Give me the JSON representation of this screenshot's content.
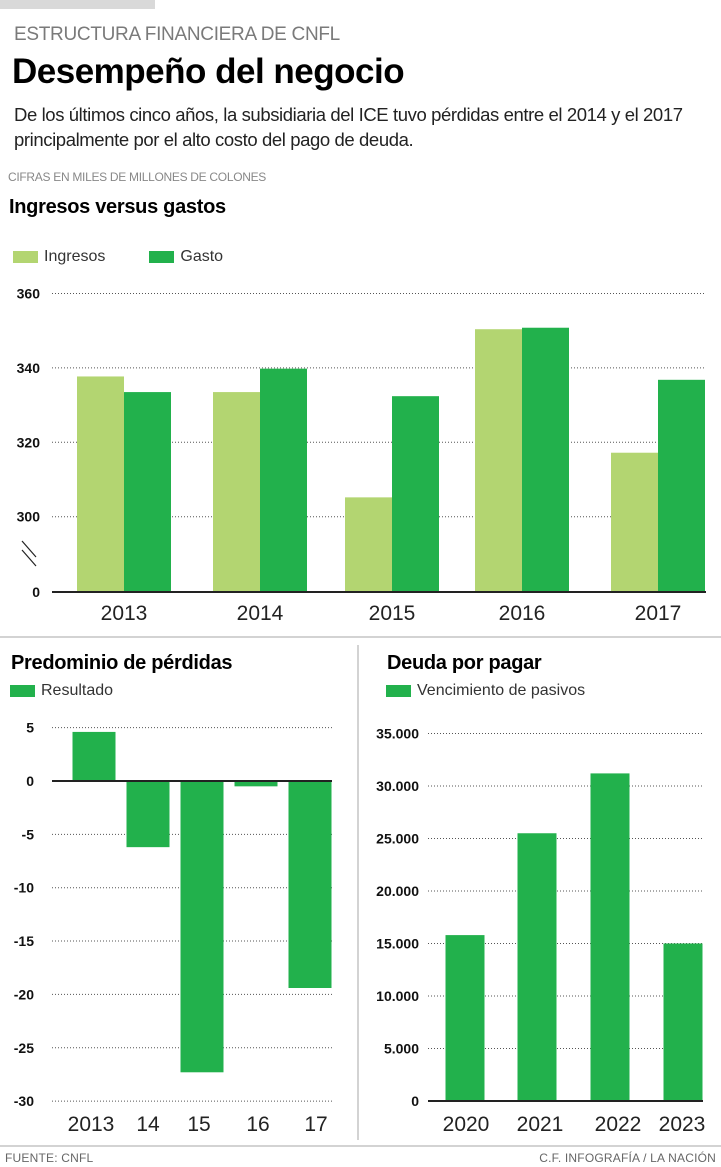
{
  "header": {
    "kicker": "ESTRUCTURA FINANCIERA DE CNFL",
    "title": "Desempeño del negocio",
    "dek": "De los últimos cinco años, la subsidiaria del ICE tuvo pérdidas entre el 2014 y el 2017 principalmente por el alto costo del pago de deuda.",
    "units": "CIFRAS EN MILES DE MILLONES DE COLONES"
  },
  "colors": {
    "ingresos": "#b3d571",
    "gasto": "#22b14c",
    "grid": "#555555",
    "axis": "#222222"
  },
  "chart_data": [
    {
      "id": "ingresos-gastos",
      "type": "bar",
      "title": "Ingresos versus gastos",
      "xlabel": "",
      "ylabel": "",
      "categories": [
        "2013",
        "2014",
        "2015",
        "2016",
        "2017"
      ],
      "series": [
        {
          "name": "Ingresos",
          "values": [
            337.7,
            333.5,
            305.2,
            350.4,
            317.2
          ]
        },
        {
          "name": "Gasto",
          "values": [
            333.5,
            339.8,
            332.4,
            350.8,
            336.8
          ]
        }
      ],
      "yticks": [
        0,
        300,
        320,
        340,
        360
      ],
      "ytick_labels": [
        "0",
        "300",
        "320",
        "340",
        "360"
      ],
      "ylim": [
        0,
        360
      ],
      "axis_break": "between 0 and 300",
      "grid": true,
      "legend": "top-left"
    },
    {
      "id": "resultado",
      "type": "bar",
      "title": "Predominio de pérdidas",
      "xlabel": "",
      "ylabel": "",
      "categories": [
        "2013",
        "14",
        "15",
        "16",
        "17"
      ],
      "series": [
        {
          "name": "Resultado",
          "values": [
            4.6,
            -6.2,
            -27.3,
            -0.5,
            -19.4
          ]
        }
      ],
      "yticks": [
        5,
        0,
        -5,
        -10,
        -15,
        -20,
        -25,
        -30
      ],
      "ytick_labels": [
        "5",
        "0",
        "-5",
        "-10",
        "-15",
        "-20",
        "-25",
        "-30"
      ],
      "ylim": [
        -30,
        5
      ],
      "grid": true,
      "legend": "top-left"
    },
    {
      "id": "deuda",
      "type": "bar",
      "title": "Deuda por pagar",
      "xlabel": "",
      "ylabel": "",
      "categories": [
        "2020",
        "2021",
        "2022",
        "2023"
      ],
      "series": [
        {
          "name": "Vencimiento de pasivos",
          "values": [
            15800,
            25500,
            31200,
            15000
          ]
        }
      ],
      "yticks": [
        0,
        5000,
        10000,
        15000,
        20000,
        25000,
        30000,
        35000
      ],
      "ytick_labels": [
        "0",
        "5.000",
        "10.000",
        "15.000",
        "20.000",
        "25.000",
        "30.000",
        "35.000"
      ],
      "ylim": [
        0,
        35000
      ],
      "grid": true,
      "legend": "top-left"
    }
  ],
  "footer": {
    "source": "FUENTE: CNFL",
    "credit": "C.F. INFOGRAFÍA / LA NACIÓN"
  }
}
